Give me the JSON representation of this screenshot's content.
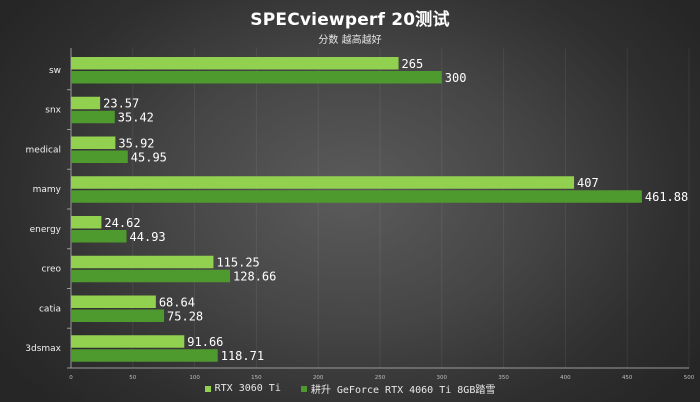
{
  "chart_data": {
    "type": "bar",
    "orientation": "horizontal",
    "title": "SPECviewperf 20测试",
    "subtitle": "分数 越高越好",
    "categories": [
      "sw",
      "snx",
      "medical",
      "mamy",
      "energy",
      "creo",
      "catia",
      "3dsmax"
    ],
    "series": [
      {
        "name": "RTX 3060 Ti",
        "color": "#92d050",
        "values": [
          265,
          23.57,
          35.92,
          407,
          24.62,
          115.25,
          68.64,
          91.66
        ],
        "labels": [
          "265",
          "23.57",
          "35.92",
          "407",
          "24.62",
          "115.25",
          "68.64",
          "91.66"
        ]
      },
      {
        "name": "耕升 GeForce RTX 4060 Ti 8GB踏雪",
        "color": "#4e9a2e",
        "values": [
          300,
          35.42,
          45.95,
          461.88,
          44.93,
          128.66,
          75.28,
          118.71
        ],
        "labels": [
          "300",
          "35.42",
          "45.95",
          "461.88",
          "44.93",
          "128.66",
          "75.28",
          "118.71"
        ]
      }
    ],
    "xlim": [
      0,
      500
    ],
    "xticks": [
      "0",
      "50",
      "100",
      "150",
      "200",
      "250",
      "300",
      "350",
      "400",
      "450",
      "500"
    ],
    "grid": true,
    "legend_position": "bottom"
  }
}
